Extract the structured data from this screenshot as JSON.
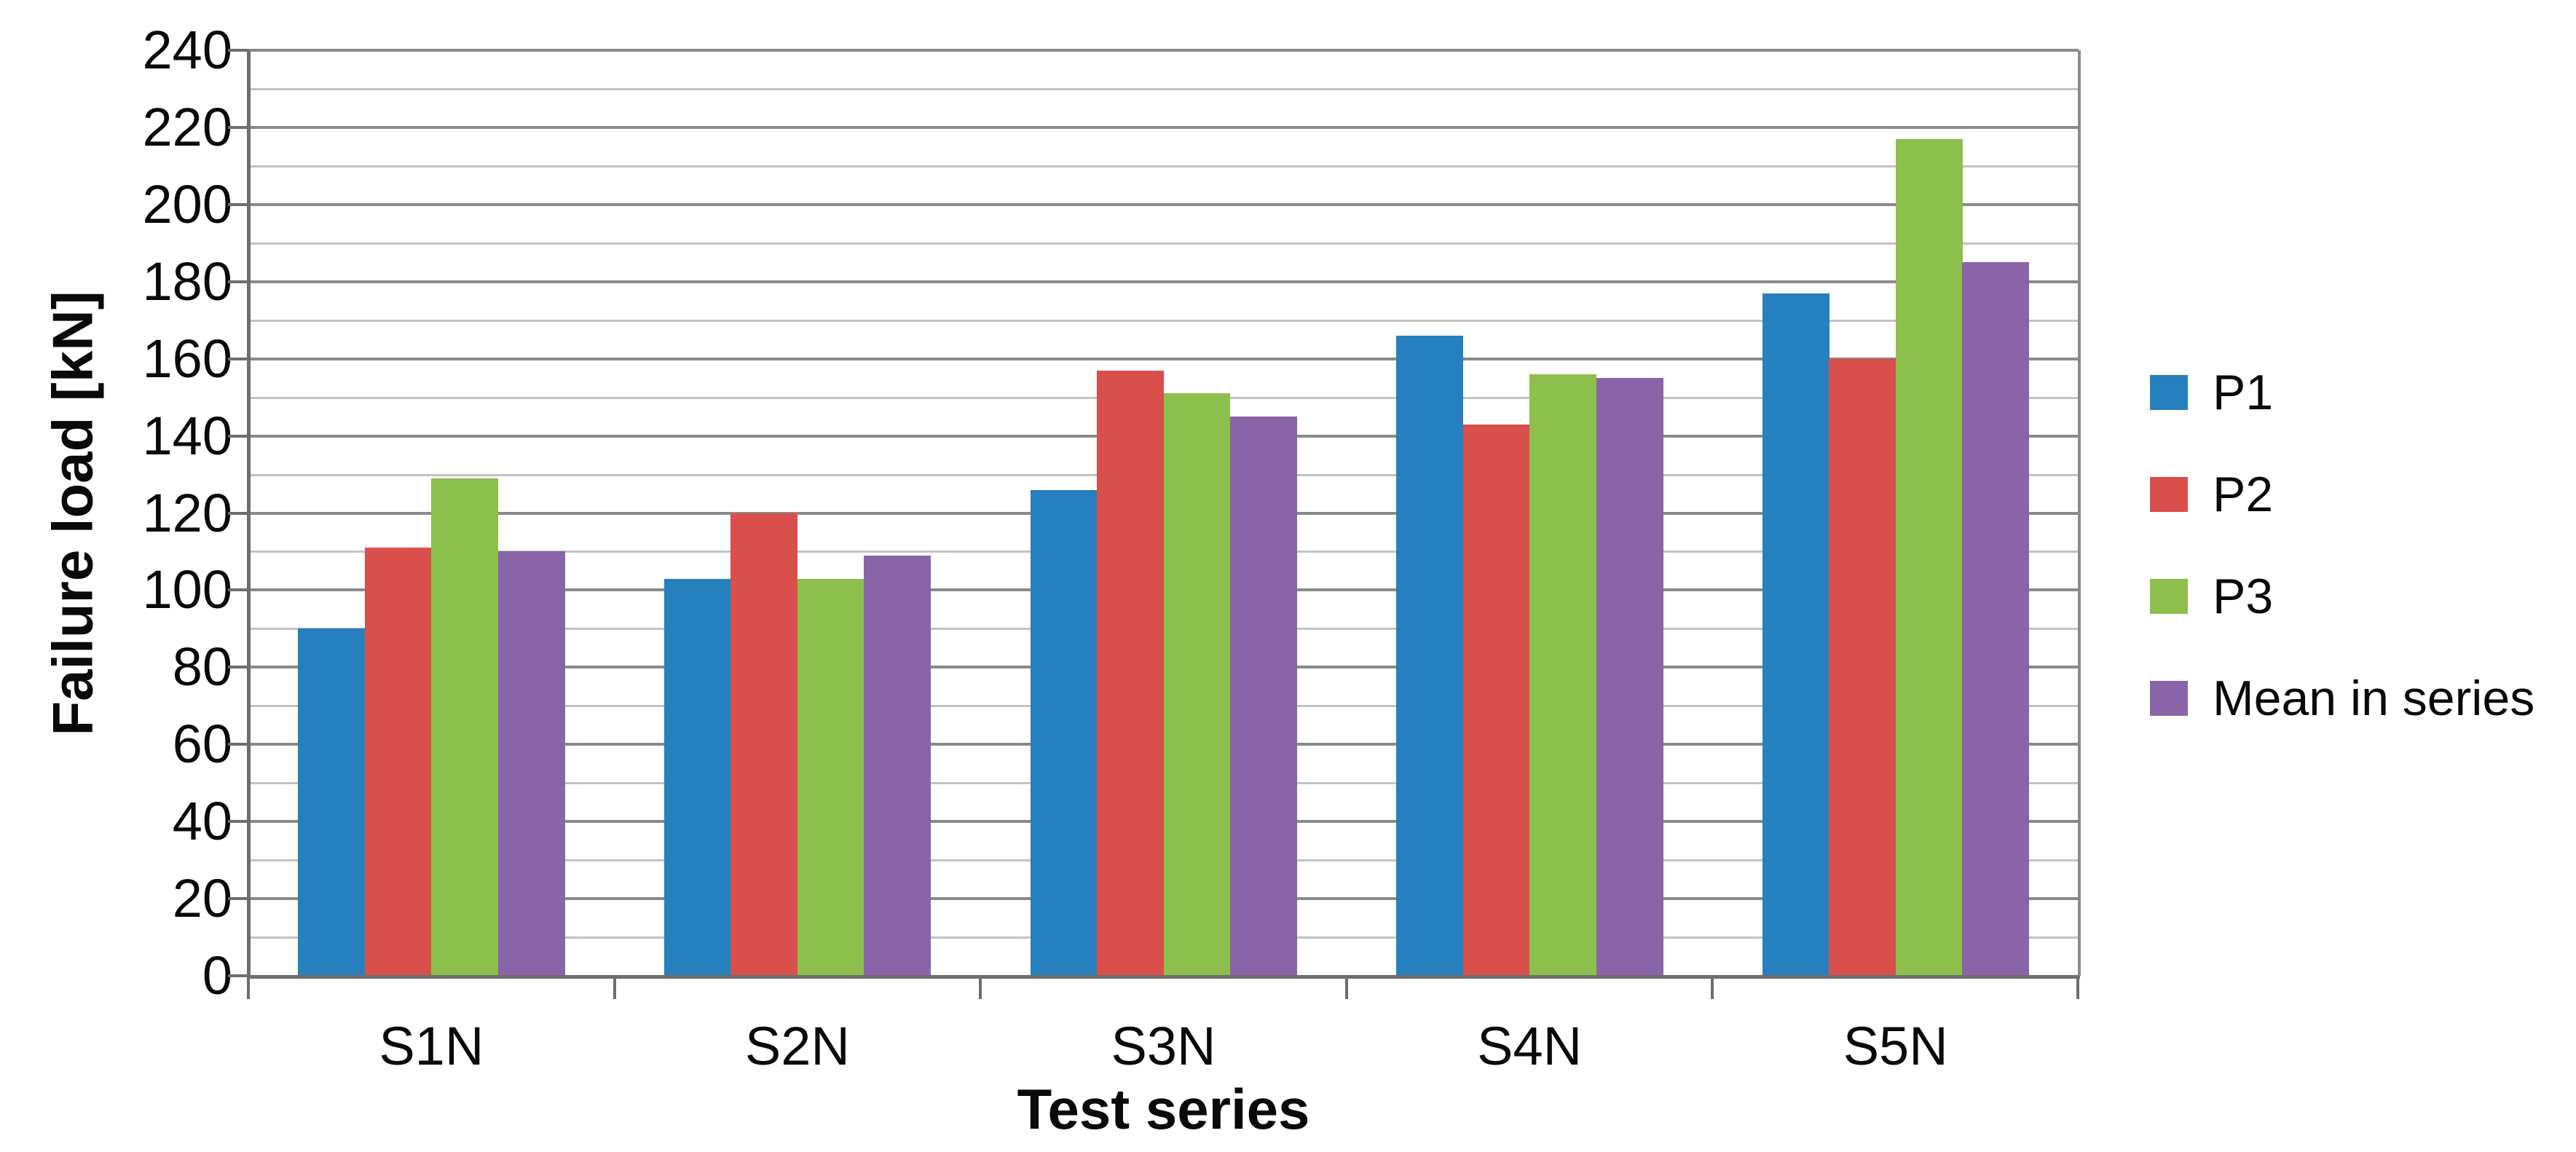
{
  "chart_data": {
    "type": "bar",
    "title": "",
    "categories": [
      "S1N",
      "S2N",
      "S3N",
      "S4N",
      "S5N"
    ],
    "series": [
      {
        "name": "P1",
        "color": "#2680BE",
        "values": [
          90,
          103,
          126,
          166,
          177
        ]
      },
      {
        "name": "P2",
        "color": "#D94F4C",
        "values": [
          111,
          120,
          157,
          143,
          160
        ]
      },
      {
        "name": "P3",
        "color": "#8CBF4B",
        "values": [
          129,
          103,
          151,
          156,
          217
        ]
      },
      {
        "name": "Mean in series",
        "color": "#8A64A8",
        "values": [
          110,
          109,
          145,
          155,
          185
        ]
      }
    ],
    "xlabel": "Test series",
    "ylabel": "Failure load [kN]",
    "ylim": [
      0,
      240
    ],
    "ytick_step": 20,
    "minor_gridline_step": 10,
    "yticks": [
      "0",
      "20",
      "40",
      "60",
      "80",
      "100",
      "120",
      "140",
      "160",
      "180",
      "200",
      "220",
      "240"
    ],
    "legend_position": "right",
    "grid": "horizontal",
    "colors": {
      "minor_gridline": "#c3c3c3",
      "major_gridline": "#8a8a8a",
      "axis_line": "#6e6e6e",
      "text": "#0a0a0a",
      "background": "#ffffff"
    }
  }
}
